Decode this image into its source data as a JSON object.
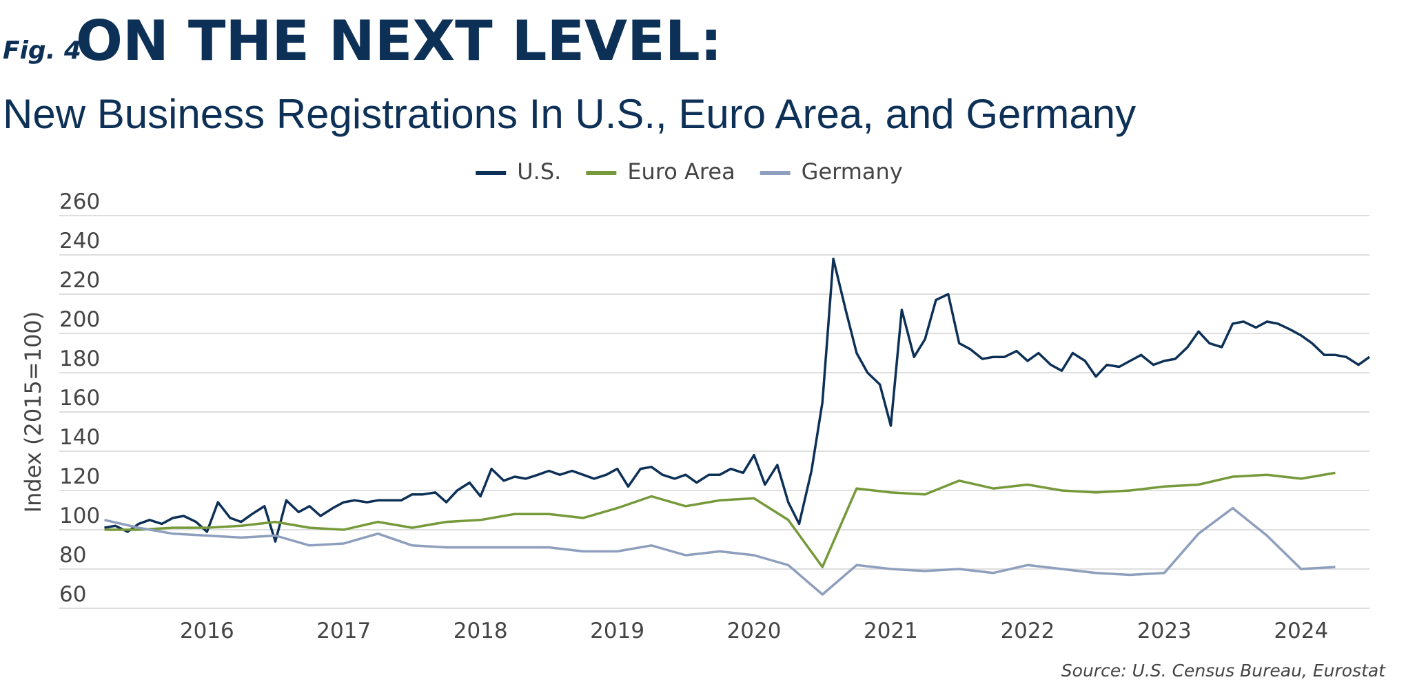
{
  "chart_data": {
    "type": "line",
    "figure_label": "Fig. 4",
    "title": "ON THE NEXT LEVEL:",
    "subtitle": "New Business Registrations In U.S., Euro Area, and Germany",
    "y_label": "Index (2015=100)",
    "source": "Source: U.S. Census Bureau, Eurostat",
    "legend": "top",
    "grid": true,
    "xlim": [
      2014.92,
      2024.5
    ],
    "xticks": [
      2016,
      2017,
      2018,
      2019,
      2020,
      2021,
      2022,
      2023,
      2024
    ],
    "ylim": [
      60,
      260
    ],
    "yticks": [
      60,
      80,
      100,
      120,
      140,
      160,
      180,
      200,
      220,
      240,
      260
    ],
    "series": [
      {
        "name": "U.S.",
        "color": "#0d3057",
        "x": [
          2015.25,
          2015.33,
          2015.42,
          2015.5,
          2015.58,
          2015.67,
          2015.75,
          2015.83,
          2015.92,
          2016,
          2016.08,
          2016.17,
          2016.25,
          2016.33,
          2016.42,
          2016.5,
          2016.58,
          2016.67,
          2016.75,
          2016.83,
          2016.92,
          2017,
          2017.08,
          2017.17,
          2017.25,
          2017.33,
          2017.42,
          2017.5,
          2017.58,
          2017.67,
          2017.75,
          2017.83,
          2017.92,
          2018,
          2018.08,
          2018.17,
          2018.25,
          2018.33,
          2018.42,
          2018.5,
          2018.58,
          2018.67,
          2018.75,
          2018.83,
          2018.92,
          2019,
          2019.08,
          2019.17,
          2019.25,
          2019.33,
          2019.42,
          2019.5,
          2019.58,
          2019.67,
          2019.75,
          2019.83,
          2019.92,
          2020,
          2020.08,
          2020.17,
          2020.25,
          2020.33,
          2020.42,
          2020.5,
          2020.58,
          2020.67,
          2020.75,
          2020.83,
          2020.92,
          2021,
          2021.08,
          2021.17,
          2021.25,
          2021.33,
          2021.42,
          2021.5,
          2021.58,
          2021.67,
          2021.75,
          2021.83,
          2021.92,
          2022,
          2022.08,
          2022.17,
          2022.25,
          2022.33,
          2022.42,
          2022.5,
          2022.58,
          2022.67,
          2022.75,
          2022.83,
          2022.92,
          2023,
          2023.08,
          2023.17,
          2023.25,
          2023.33,
          2023.42,
          2023.5,
          2023.58,
          2023.67,
          2023.75,
          2023.83,
          2023.92,
          2024,
          2024.08,
          2024.17,
          2024.25,
          2024.33,
          2024.42,
          2024.5
        ],
        "values": [
          101,
          102,
          99,
          103,
          105,
          103,
          106,
          107,
          104,
          99,
          114,
          106,
          104,
          108,
          112,
          94,
          115,
          109,
          112,
          107,
          111,
          114,
          115,
          114,
          115,
          115,
          115,
          118,
          118,
          119,
          114,
          120,
          124,
          117,
          131,
          125,
          127,
          126,
          128,
          130,
          128,
          130,
          128,
          126,
          128,
          131,
          122,
          131,
          132,
          128,
          126,
          128,
          124,
          128,
          128,
          131,
          129,
          138,
          123,
          133,
          114,
          103,
          130,
          165,
          238,
          212,
          190,
          180,
          174,
          153,
          212,
          188,
          197,
          217,
          220,
          195,
          192,
          187,
          188,
          188,
          191,
          186,
          190,
          184,
          181,
          190,
          186,
          178,
          184,
          183,
          186,
          189,
          184,
          186,
          187,
          193,
          201,
          195,
          193,
          205,
          206,
          203,
          206,
          205,
          202,
          199,
          195,
          189,
          189,
          188,
          184,
          188
        ]
      },
      {
        "name": "Euro Area",
        "color": "#76993a",
        "x": [
          2015.25,
          2015.5,
          2015.75,
          2016,
          2016.25,
          2016.5,
          2016.75,
          2017,
          2017.25,
          2017.5,
          2017.75,
          2018,
          2018.25,
          2018.5,
          2018.75,
          2019,
          2019.25,
          2019.5,
          2019.75,
          2020,
          2020.25,
          2020.5,
          2020.75,
          2021,
          2021.25,
          2021.5,
          2021.75,
          2022,
          2022.25,
          2022.5,
          2022.75,
          2023,
          2023.25,
          2023.5,
          2023.75,
          2024,
          2024.25
        ],
        "values": [
          100,
          100,
          101,
          101,
          102,
          104,
          101,
          100,
          104,
          101,
          104,
          105,
          108,
          108,
          106,
          111,
          117,
          112,
          115,
          116,
          105,
          81,
          121,
          119,
          118,
          125,
          121,
          123,
          120,
          119,
          120,
          122,
          123,
          127,
          128,
          126,
          129
        ]
      },
      {
        "name": "Germany",
        "color": "#8e9fbd",
        "x": [
          2015.25,
          2015.5,
          2015.75,
          2016,
          2016.25,
          2016.5,
          2016.75,
          2017,
          2017.25,
          2017.5,
          2017.75,
          2018,
          2018.25,
          2018.5,
          2018.75,
          2019,
          2019.25,
          2019.5,
          2019.75,
          2020,
          2020.25,
          2020.5,
          2020.75,
          2021,
          2021.25,
          2021.5,
          2021.75,
          2022,
          2022.25,
          2022.5,
          2022.75,
          2023,
          2023.25,
          2023.5,
          2023.75,
          2024,
          2024.25
        ],
        "values": [
          105,
          101,
          98,
          97,
          96,
          97,
          92,
          93,
          98,
          92,
          91,
          91,
          91,
          91,
          89,
          89,
          92,
          87,
          89,
          87,
          82,
          67,
          82,
          80,
          79,
          80,
          78,
          82,
          80,
          78,
          77,
          78,
          98,
          111,
          97,
          80,
          81
        ]
      }
    ]
  }
}
